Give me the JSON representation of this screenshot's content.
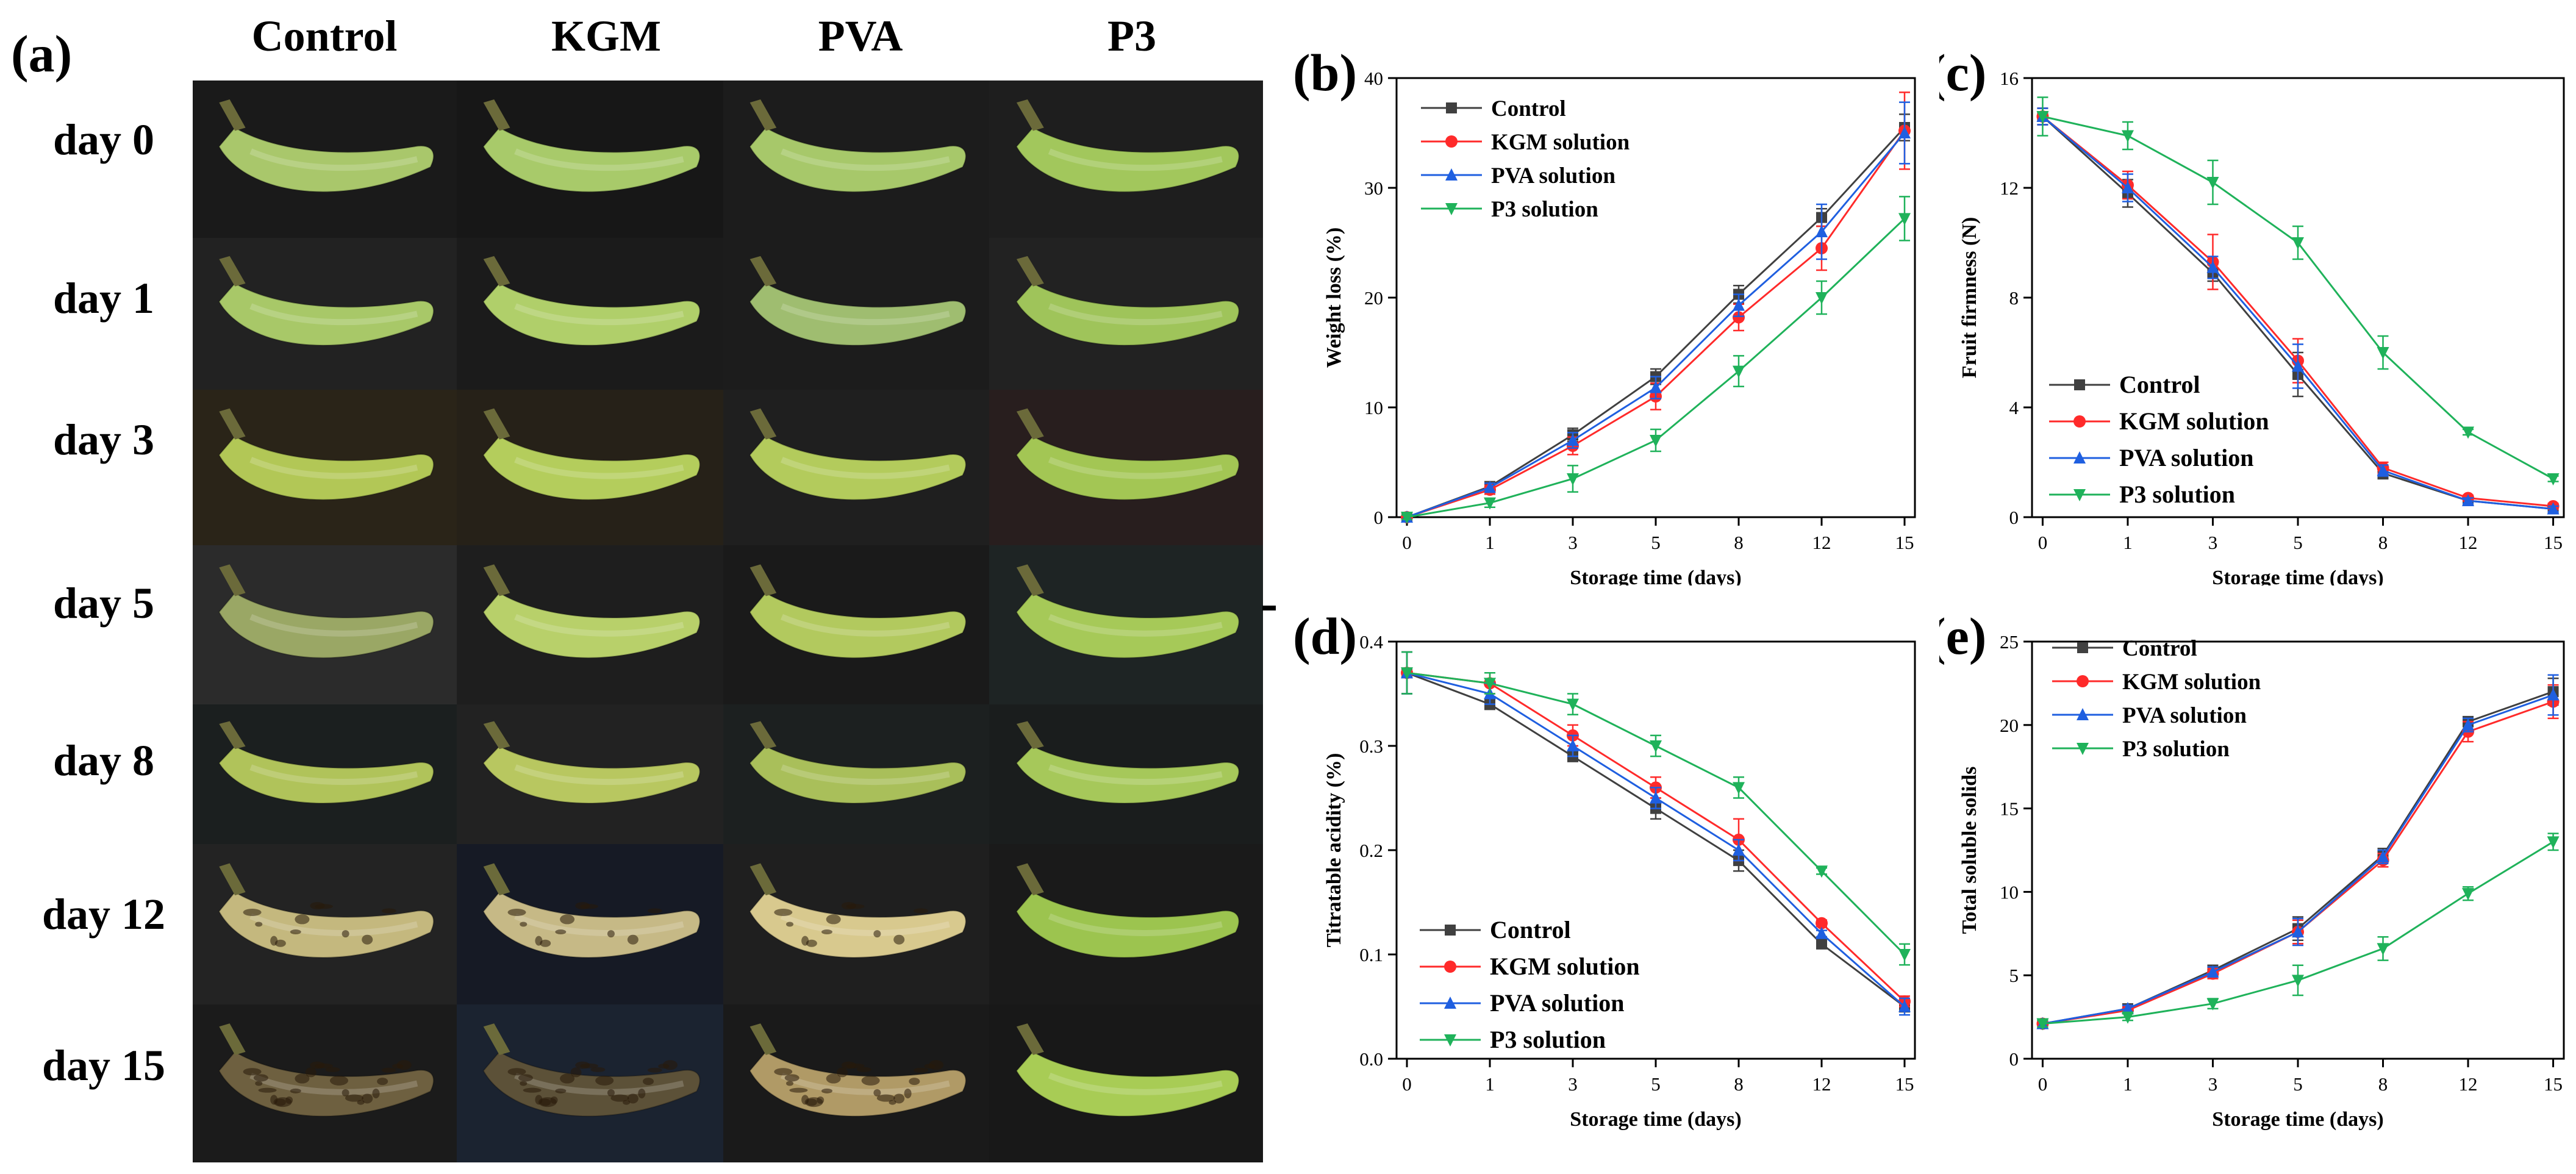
{
  "figure": {
    "panel_a_label": "(a)",
    "columns": [
      "Control",
      "KGM",
      "PVA",
      "P3"
    ],
    "rows": [
      "day 0",
      "day 1",
      "day 3",
      "day 5",
      "day 8",
      "day 12",
      "day 15"
    ]
  },
  "colors": {
    "Control": "#404040",
    "KGM solution": "#ff2a2a",
    "PVA solution": "#1f5fe0",
    "P3 solution": "#1fb25a"
  },
  "chart_data": [
    {
      "panel": "(b)",
      "type": "line",
      "xlabel": "Storage time (days)",
      "ylabel": "Weight loss (%)",
      "categories": [
        "0",
        "1",
        "3",
        "5",
        "8",
        "12",
        "15"
      ],
      "ylim": [
        0,
        40
      ],
      "yticks": [
        0,
        10,
        20,
        30,
        40
      ],
      "legend": "top-left",
      "series": [
        {
          "name": "Control",
          "values": [
            0,
            2.8,
            7.5,
            12.8,
            20.3,
            27.3,
            35.5
          ],
          "errors": [
            0.2,
            0.4,
            0.6,
            0.7,
            0.8,
            0.8,
            1.2
          ]
        },
        {
          "name": "KGM solution",
          "values": [
            0,
            2.5,
            6.5,
            11.0,
            18.2,
            24.5,
            35.2
          ],
          "errors": [
            0.2,
            0.4,
            0.8,
            1.2,
            1.2,
            2.0,
            3.5
          ]
        },
        {
          "name": "PVA solution",
          "values": [
            0,
            2.7,
            7.0,
            11.8,
            19.3,
            26.0,
            35.0
          ],
          "errors": [
            0.2,
            0.4,
            0.7,
            1.0,
            1.0,
            2.5,
            2.8
          ]
        },
        {
          "name": "P3 solution",
          "values": [
            0,
            1.3,
            3.5,
            7.0,
            13.3,
            20.0,
            27.2
          ],
          "errors": [
            0.2,
            0.4,
            1.2,
            1.0,
            1.4,
            1.5,
            2.0
          ]
        }
      ]
    },
    {
      "panel": "(c)",
      "type": "line",
      "xlabel": "Storage time (days)",
      "ylabel": "Fruit firmness (N)",
      "categories": [
        "0",
        "1",
        "3",
        "5",
        "8",
        "12",
        "15"
      ],
      "ylim": [
        0,
        16
      ],
      "yticks": [
        0,
        4,
        8,
        12,
        16
      ],
      "legend": "bottom-left",
      "series": [
        {
          "name": "Control",
          "values": [
            14.6,
            11.8,
            8.9,
            5.2,
            1.6,
            0.6,
            0.3
          ],
          "errors": [
            0.3,
            0.5,
            0.3,
            0.8,
            0.2,
            0.1,
            0.1
          ]
        },
        {
          "name": "KGM solution",
          "values": [
            14.6,
            12.1,
            9.3,
            5.7,
            1.8,
            0.7,
            0.4
          ],
          "errors": [
            0.3,
            0.5,
            1.0,
            0.8,
            0.2,
            0.1,
            0.1
          ]
        },
        {
          "name": "PVA solution",
          "values": [
            14.6,
            12.0,
            9.1,
            5.5,
            1.7,
            0.6,
            0.3
          ],
          "errors": [
            0.3,
            0.5,
            0.4,
            0.8,
            0.2,
            0.1,
            0.1
          ]
        },
        {
          "name": "P3 solution",
          "values": [
            14.6,
            13.9,
            12.2,
            10.0,
            6.0,
            3.1,
            1.4
          ],
          "errors": [
            0.7,
            0.5,
            0.8,
            0.6,
            0.6,
            0.1,
            0.1
          ]
        }
      ]
    },
    {
      "panel": "(d)",
      "type": "line",
      "xlabel": "Storage time (days)",
      "ylabel": "Titratable acidity (%)",
      "categories": [
        "0",
        "1",
        "3",
        "5",
        "8",
        "12",
        "15"
      ],
      "ylim": [
        0,
        0.4
      ],
      "yticks": [
        0,
        0.1,
        0.2,
        0.3,
        0.4
      ],
      "yticklabels": [
        "0.0",
        "0.1",
        "0.2",
        "0.3",
        "0.4"
      ],
      "legend": "bottom-left",
      "series": [
        {
          "name": "Control",
          "values": [
            0.37,
            0.34,
            0.29,
            0.24,
            0.19,
            0.11,
            0.05
          ],
          "errors": [
            0.02,
            0.005,
            0.005,
            0.01,
            0.01,
            0.003,
            0.005
          ]
        },
        {
          "name": "KGM solution",
          "values": [
            0.37,
            0.36,
            0.31,
            0.26,
            0.21,
            0.13,
            0.055
          ],
          "errors": [
            0.02,
            0.01,
            0.01,
            0.01,
            0.02,
            0.003,
            0.005
          ]
        },
        {
          "name": "PVA solution",
          "values": [
            0.37,
            0.35,
            0.3,
            0.25,
            0.2,
            0.12,
            0.05
          ],
          "errors": [
            0.02,
            0.01,
            0.01,
            0.01,
            0.01,
            0.003,
            0.008
          ]
        },
        {
          "name": "P3 solution",
          "values": [
            0.37,
            0.36,
            0.34,
            0.3,
            0.26,
            0.18,
            0.1
          ],
          "errors": [
            0.02,
            0.01,
            0.01,
            0.01,
            0.01,
            0.003,
            0.01
          ]
        }
      ]
    },
    {
      "panel": "(e)",
      "type": "line",
      "xlabel": "Storage time (days)",
      "ylabel": "Total soluble solids",
      "categories": [
        "0",
        "1",
        "3",
        "5",
        "8",
        "12",
        "15"
      ],
      "ylim": [
        0,
        25
      ],
      "yticks": [
        0,
        5,
        10,
        15,
        20,
        25
      ],
      "legend": "top-left",
      "series": [
        {
          "name": "Control",
          "values": [
            2.1,
            3.0,
            5.3,
            7.8,
            12.2,
            20.2,
            22.0
          ],
          "errors": [
            0.2,
            0.2,
            0.3,
            0.7,
            0.4,
            0.3,
            0.8
          ]
        },
        {
          "name": "KGM solution",
          "values": [
            2.1,
            2.9,
            5.1,
            7.6,
            11.9,
            19.6,
            21.4
          ],
          "errors": [
            0.2,
            0.2,
            0.3,
            0.7,
            0.4,
            0.6,
            1.0
          ]
        },
        {
          "name": "PVA solution",
          "values": [
            2.1,
            3.0,
            5.2,
            7.6,
            12.1,
            20.0,
            21.8
          ],
          "errors": [
            0.2,
            0.2,
            0.3,
            0.8,
            0.4,
            0.4,
            1.2
          ]
        },
        {
          "name": "P3 solution",
          "values": [
            2.1,
            2.5,
            3.3,
            4.7,
            6.6,
            9.9,
            13.0
          ],
          "errors": [
            0.2,
            0.2,
            0.3,
            0.9,
            0.7,
            0.4,
            0.5
          ]
        }
      ]
    }
  ]
}
